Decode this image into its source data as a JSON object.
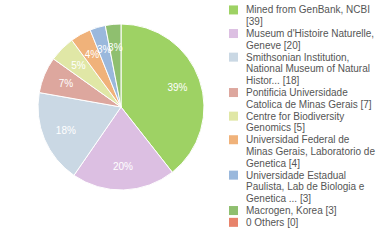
{
  "chart_data": {
    "type": "pie",
    "categories": [
      "Mined from GenBank, NCBI [39]",
      "Museum d'Histoire Naturelle, Geneve [20]",
      "Smithsonian Institution, National Museum of Natural Histor... [18]",
      "Pontificia Universidade Catolica de Minas Gerais [7]",
      "Centre for Biodiversity Genomics [5]",
      "Universidad Federal de Minas Gerais, Laboratorio de Genetica [4]",
      "Universidade Estadual Paulista, Lab de Biologia e Genetica ... [3]",
      "Macrogen, Korea [3]",
      "0 Others [0]"
    ],
    "values": [
      39,
      20,
      18,
      7,
      5,
      4,
      3,
      3,
      0
    ],
    "value_labels": [
      "39%",
      "20%",
      "18%",
      "7%",
      "5%",
      "4%",
      "3%",
      "3%",
      null
    ],
    "colors": [
      "#9ed264",
      "#dcbfe2",
      "#cad8e4",
      "#dda79e",
      "#e0e7a6",
      "#f0b27a",
      "#9ab8dc",
      "#8fbf6f",
      "#e8836b"
    ],
    "data_labels": true,
    "legend": "right"
  }
}
